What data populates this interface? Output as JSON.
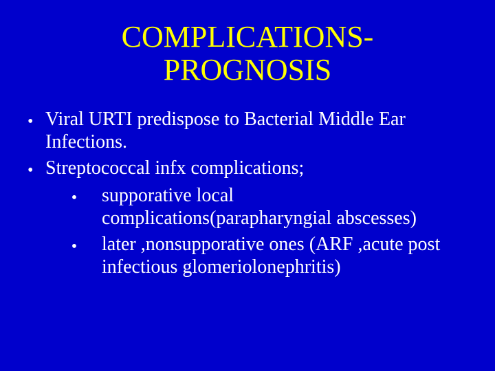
{
  "slide": {
    "background_color": "#0000cc",
    "title_color": "#ffff00",
    "text_color": "#ffffff",
    "font_family": "Times New Roman",
    "title_fontsize": 44,
    "body_fontsize": 28,
    "title_line1": "COMPLICATIONS-",
    "title_line2": "PROGNOSIS",
    "bullets": [
      {
        "level": 1,
        "text": "Viral URTI predispose to Bacterial Middle Ear Infections."
      },
      {
        "level": 1,
        "text": "Streptococcal infx complications;"
      },
      {
        "level": 2,
        "text": "supporative local complications(parapharyngial abscesses)"
      },
      {
        "level": 2,
        "text": "later ,nonsupporative ones (ARF ,acute post infectious glomeriolonephritis)"
      }
    ]
  }
}
